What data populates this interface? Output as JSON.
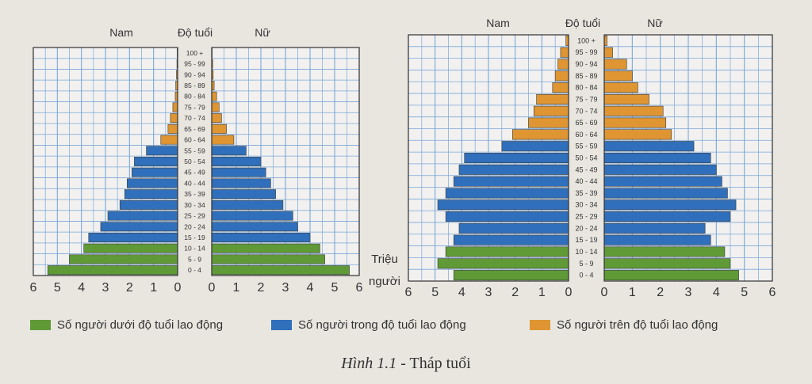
{
  "chart_data": [
    {
      "type": "bar",
      "subtype": "population-pyramid",
      "xlabel": "Triệu người",
      "xlim": [
        0,
        6
      ],
      "header": {
        "left": "Nam",
        "center": "Độ tuổi",
        "right": "Nữ"
      },
      "x_ticks_left": [
        "6",
        "5",
        "4",
        "3",
        "2",
        "1",
        "0"
      ],
      "x_ticks_right": [
        "0",
        "1",
        "2",
        "3",
        "4",
        "5",
        "6"
      ],
      "categories": [
        "0 - 4",
        "5 - 9",
        "10 - 14",
        "15 - 19",
        "20 - 24",
        "25 - 29",
        "30 - 34",
        "35 - 39",
        "40 - 44",
        "45 - 49",
        "50 - 54",
        "55 - 59",
        "60 - 64",
        "65 - 69",
        "70 - 74",
        "75 - 79",
        "80 - 84",
        "85 - 89",
        "90 - 94",
        "95 - 99",
        "100 +"
      ],
      "groups": [
        "under",
        "under",
        "under",
        "working",
        "working",
        "working",
        "working",
        "working",
        "working",
        "working",
        "working",
        "working",
        "over",
        "over",
        "over",
        "over",
        "over",
        "over",
        "over",
        "over",
        "over"
      ],
      "series": [
        {
          "name": "Nam",
          "values": [
            5.4,
            4.5,
            3.9,
            3.7,
            3.2,
            2.9,
            2.4,
            2.2,
            2.1,
            1.9,
            1.8,
            1.3,
            0.7,
            0.4,
            0.3,
            0.2,
            0.1,
            0.08,
            0.05,
            0.03,
            0.02
          ]
        },
        {
          "name": "Nữ",
          "values": [
            5.6,
            4.6,
            4.4,
            4.0,
            3.5,
            3.3,
            2.9,
            2.6,
            2.4,
            2.2,
            2.0,
            1.4,
            0.9,
            0.6,
            0.4,
            0.3,
            0.2,
            0.1,
            0.06,
            0.04,
            0.02
          ]
        }
      ]
    },
    {
      "type": "bar",
      "subtype": "population-pyramid",
      "xlabel": "",
      "xlim": [
        0,
        6
      ],
      "header": {
        "left": "Nam",
        "center": "Độ tuổi",
        "right": "Nữ"
      },
      "x_ticks_left": [
        "6",
        "5",
        "4",
        "3",
        "2",
        "1",
        "0"
      ],
      "x_ticks_right": [
        "0",
        "1",
        "2",
        "3",
        "4",
        "5",
        "6"
      ],
      "categories": [
        "0 - 4",
        "5 - 9",
        "10 - 14",
        "15 - 19",
        "20 - 24",
        "25 - 29",
        "30 - 34",
        "35 - 39",
        "40 - 44",
        "45 - 49",
        "50 - 54",
        "55 - 59",
        "60 - 64",
        "65 - 69",
        "70 - 74",
        "75 - 79",
        "80 - 84",
        "85 - 89",
        "90 - 94",
        "95 - 99",
        "100 +"
      ],
      "groups": [
        "under",
        "under",
        "under",
        "working",
        "working",
        "working",
        "working",
        "working",
        "working",
        "working",
        "working",
        "working",
        "over",
        "over",
        "over",
        "over",
        "over",
        "over",
        "over",
        "over",
        "over"
      ],
      "series": [
        {
          "name": "Nam",
          "values": [
            4.3,
            4.9,
            4.6,
            4.3,
            4.1,
            4.6,
            4.9,
            4.6,
            4.3,
            4.1,
            3.9,
            2.5,
            2.1,
            1.5,
            1.3,
            1.2,
            0.6,
            0.5,
            0.4,
            0.3,
            0.1
          ]
        },
        {
          "name": "Nữ",
          "values": [
            4.8,
            4.5,
            4.3,
            3.8,
            3.6,
            4.5,
            4.7,
            4.4,
            4.2,
            4.0,
            3.8,
            3.2,
            2.4,
            2.2,
            2.1,
            1.6,
            1.2,
            1.0,
            0.8,
            0.3,
            0.1
          ]
        }
      ]
    }
  ],
  "colors": {
    "under": "#5f9a36",
    "working": "#2f6fbb",
    "over": "#de9532"
  },
  "legend": [
    {
      "key": "under",
      "label": "Số người dưới độ tuổi lao động"
    },
    {
      "key": "working",
      "label": "Số người trong độ tuổi lao động"
    },
    {
      "key": "over",
      "label": "Số người trên độ tuổi lao động"
    }
  ],
  "caption": {
    "label": "Hình 1.1",
    "text": " - Tháp tuổi"
  }
}
